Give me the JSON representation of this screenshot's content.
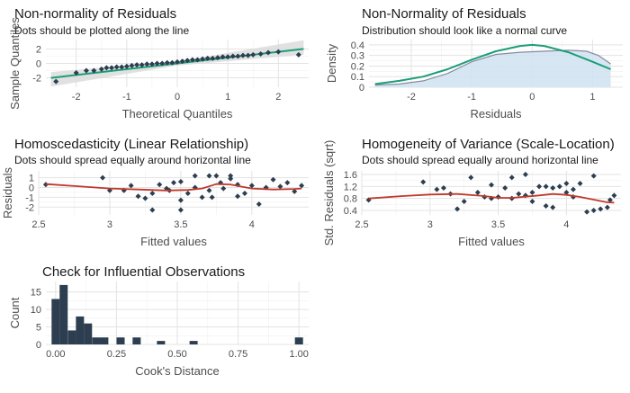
{
  "colors": {
    "panel_bg": "#ebebeb",
    "grid": "#ffffff",
    "points": "#2c3e50",
    "accent_green": "#1b9e77",
    "smooth_red": "#c0392b",
    "density_fill": "#cfe3f1",
    "density_line": "#8a8aa0",
    "band": "#d9d9d9"
  },
  "chart_data": [
    {
      "id": "qq",
      "type": "scatter",
      "title": "Non-normality of Residuals",
      "subtitle": "Dots should be plotted along the line",
      "xlabel": "Theoretical Quantiles",
      "ylabel": "Sample Quantiles",
      "xlim": [
        -2.6,
        2.6
      ],
      "ylim": [
        -3.3,
        3.3
      ],
      "xticks": [
        -2,
        -1,
        0,
        1,
        2
      ],
      "yticks": [
        -2,
        0,
        2
      ],
      "points": [
        [
          -2.4,
          -2.5
        ],
        [
          -2.0,
          -1.3
        ],
        [
          -1.8,
          -1.0
        ],
        [
          -1.65,
          -1.0
        ],
        [
          -1.5,
          -0.8
        ],
        [
          -1.4,
          -0.6
        ],
        [
          -1.3,
          -0.6
        ],
        [
          -1.2,
          -0.5
        ],
        [
          -1.1,
          -0.5
        ],
        [
          -1.0,
          -0.4
        ],
        [
          -0.9,
          -0.3
        ],
        [
          -0.8,
          -0.2
        ],
        [
          -0.7,
          -0.2
        ],
        [
          -0.6,
          -0.1
        ],
        [
          -0.5,
          -0.1
        ],
        [
          -0.4,
          0.0
        ],
        [
          -0.3,
          0.0
        ],
        [
          -0.2,
          0.1
        ],
        [
          -0.1,
          0.1
        ],
        [
          0.0,
          0.2
        ],
        [
          0.1,
          0.3
        ],
        [
          0.2,
          0.4
        ],
        [
          0.3,
          0.5
        ],
        [
          0.4,
          0.5
        ],
        [
          0.5,
          0.6
        ],
        [
          0.6,
          0.7
        ],
        [
          0.7,
          0.7
        ],
        [
          0.8,
          0.8
        ],
        [
          0.9,
          0.9
        ],
        [
          1.0,
          0.9
        ],
        [
          1.1,
          1.0
        ],
        [
          1.2,
          1.0
        ],
        [
          1.3,
          1.1
        ],
        [
          1.4,
          1.1
        ],
        [
          1.5,
          1.2
        ],
        [
          1.65,
          1.3
        ],
        [
          1.8,
          1.5
        ],
        [
          2.0,
          1.6
        ],
        [
          2.4,
          1.2
        ]
      ],
      "line": [
        [
          -2.5,
          -2.0
        ],
        [
          2.5,
          2.0
        ]
      ],
      "band_upper": [
        [
          -2.5,
          -1.2
        ],
        [
          0,
          0.3
        ],
        [
          2.5,
          3.2
        ]
      ],
      "band_lower": [
        [
          -2.5,
          -3.2
        ],
        [
          0,
          -0.3
        ],
        [
          2.5,
          1.2
        ]
      ]
    },
    {
      "id": "density",
      "type": "area",
      "title": "Non-Normality of Residuals",
      "subtitle": "Distribution should look like a normal curve",
      "xlabel": "Residuals",
      "ylabel": "Density",
      "xlim": [
        -2.7,
        1.5
      ],
      "ylim": [
        0,
        0.45
      ],
      "xticks": [
        -2,
        -1,
        0,
        1
      ],
      "yticks": [
        0.0,
        0.1,
        0.2,
        0.3,
        0.4
      ],
      "observed": [
        [
          -2.6,
          0.02
        ],
        [
          -2.2,
          0.03
        ],
        [
          -1.8,
          0.06
        ],
        [
          -1.4,
          0.13
        ],
        [
          -1.0,
          0.24
        ],
        [
          -0.6,
          0.31
        ],
        [
          -0.2,
          0.33
        ],
        [
          0.2,
          0.34
        ],
        [
          0.6,
          0.35
        ],
        [
          0.9,
          0.34
        ],
        [
          1.1,
          0.3
        ],
        [
          1.3,
          0.22
        ]
      ],
      "normal": [
        [
          -2.6,
          0.03
        ],
        [
          -2.2,
          0.06
        ],
        [
          -1.8,
          0.1
        ],
        [
          -1.4,
          0.17
        ],
        [
          -1.0,
          0.26
        ],
        [
          -0.6,
          0.34
        ],
        [
          -0.2,
          0.39
        ],
        [
          0.0,
          0.4
        ],
        [
          0.2,
          0.39
        ],
        [
          0.6,
          0.33
        ],
        [
          1.0,
          0.24
        ],
        [
          1.3,
          0.17
        ]
      ]
    },
    {
      "id": "linearity",
      "type": "scatter",
      "title": "Homoscedasticity (Linear Relationship)",
      "subtitle": "Dots should spread equally around horizontal line",
      "xlabel": "Fitted values",
      "ylabel": "Residuals",
      "xlim": [
        2.5,
        4.4
      ],
      "ylim": [
        -2.8,
        1.7
      ],
      "xticks": [
        2.5,
        3.0,
        3.5,
        4.0
      ],
      "yticks": [
        -2,
        -1,
        0,
        1
      ],
      "points": [
        [
          2.55,
          0.3
        ],
        [
          2.95,
          1.0
        ],
        [
          3.0,
          -0.3
        ],
        [
          3.1,
          -0.3
        ],
        [
          3.2,
          -0.9
        ],
        [
          3.25,
          -1.1
        ],
        [
          3.3,
          -0.6
        ],
        [
          3.3,
          -2.3
        ],
        [
          3.4,
          -0.1
        ],
        [
          3.45,
          0.5
        ],
        [
          3.5,
          0.6
        ],
        [
          3.5,
          -1.3
        ],
        [
          3.5,
          -2.3
        ],
        [
          3.55,
          -0.6
        ],
        [
          3.6,
          1.2
        ],
        [
          3.6,
          0.0
        ],
        [
          3.65,
          -1.0
        ],
        [
          3.7,
          1.2
        ],
        [
          3.7,
          -0.3
        ],
        [
          3.72,
          -1.0
        ],
        [
          3.75,
          1.2
        ],
        [
          3.78,
          0.5
        ],
        [
          3.8,
          -0.1
        ],
        [
          3.85,
          1.2
        ],
        [
          3.85,
          0.9
        ],
        [
          3.9,
          0.3
        ],
        [
          3.95,
          -0.6
        ],
        [
          4.0,
          0.2
        ],
        [
          4.05,
          -1.7
        ],
        [
          4.1,
          0.0
        ],
        [
          4.15,
          0.8
        ],
        [
          4.2,
          0.1
        ],
        [
          4.25,
          0.5
        ],
        [
          4.3,
          -0.4
        ],
        [
          4.35,
          0.2
        ],
        [
          3.15,
          0.2
        ],
        [
          3.35,
          0.3
        ],
        [
          3.42,
          -0.3
        ],
        [
          3.9,
          -0.9
        ]
      ],
      "smooth": [
        [
          2.55,
          0.35
        ],
        [
          2.8,
          0.1
        ],
        [
          3.0,
          -0.1
        ],
        [
          3.2,
          -0.2
        ],
        [
          3.4,
          -0.3
        ],
        [
          3.55,
          -0.25
        ],
        [
          3.65,
          -0.1
        ],
        [
          3.75,
          0.35
        ],
        [
          3.85,
          0.3
        ],
        [
          4.0,
          -0.1
        ],
        [
          4.15,
          -0.2
        ],
        [
          4.3,
          -0.15
        ],
        [
          4.35,
          -0.1
        ]
      ]
    },
    {
      "id": "scale-location",
      "type": "scatter",
      "title": "Homogeneity of Variance (Scale-Location)",
      "subtitle": "Dots should spread equally around horizontal line",
      "xlabel": "Fitted values",
      "ylabel": "Std. Residuals (sqrt)",
      "xlim": [
        2.5,
        4.4
      ],
      "ylim": [
        0.25,
        1.72
      ],
      "xticks": [
        2.5,
        3.0,
        3.5,
        4.0
      ],
      "yticks": [
        0.4,
        0.8,
        1.2,
        1.6
      ],
      "points": [
        [
          2.55,
          0.75
        ],
        [
          2.95,
          1.35
        ],
        [
          3.05,
          1.1
        ],
        [
          3.1,
          1.15
        ],
        [
          3.15,
          0.95
        ],
        [
          3.2,
          0.45
        ],
        [
          3.3,
          1.5
        ],
        [
          3.35,
          1.0
        ],
        [
          3.4,
          0.85
        ],
        [
          3.45,
          0.8
        ],
        [
          3.5,
          0.85
        ],
        [
          3.55,
          1.15
        ],
        [
          3.6,
          1.5
        ],
        [
          3.6,
          0.8
        ],
        [
          3.65,
          0.95
        ],
        [
          3.7,
          1.6
        ],
        [
          3.7,
          0.9
        ],
        [
          3.75,
          1.0
        ],
        [
          3.8,
          1.2
        ],
        [
          3.85,
          1.2
        ],
        [
          3.9,
          1.15
        ],
        [
          3.95,
          1.2
        ],
        [
          4.0,
          1.0
        ],
        [
          4.05,
          0.85
        ],
        [
          4.1,
          1.3
        ],
        [
          4.15,
          0.35
        ],
        [
          4.2,
          0.4
        ],
        [
          4.25,
          0.45
        ],
        [
          4.3,
          0.5
        ],
        [
          4.35,
          0.9
        ],
        [
          3.85,
          0.55
        ],
        [
          3.9,
          0.5
        ],
        [
          4.05,
          1.1
        ],
        [
          4.2,
          1.55
        ],
        [
          3.25,
          0.7
        ],
        [
          3.45,
          1.25
        ],
        [
          3.75,
          0.7
        ],
        [
          4.0,
          1.3
        ],
        [
          4.32,
          0.75
        ]
      ],
      "smooth": [
        [
          2.55,
          0.8
        ],
        [
          2.8,
          0.88
        ],
        [
          3.0,
          0.93
        ],
        [
          3.2,
          0.95
        ],
        [
          3.4,
          0.88
        ],
        [
          3.5,
          0.82
        ],
        [
          3.6,
          0.82
        ],
        [
          3.7,
          0.86
        ],
        [
          3.8,
          0.9
        ],
        [
          3.9,
          0.95
        ],
        [
          4.0,
          0.92
        ],
        [
          4.1,
          0.85
        ],
        [
          4.2,
          0.76
        ],
        [
          4.3,
          0.67
        ],
        [
          4.35,
          0.66
        ]
      ]
    },
    {
      "id": "cooks",
      "type": "bar",
      "title": "Check for Influential Observations",
      "xlabel": "Cook's Distance",
      "ylabel": "Count",
      "xlim": [
        -0.04,
        1.04
      ],
      "ylim": [
        0,
        18
      ],
      "xticks": [
        0.0,
        0.25,
        0.5,
        0.75,
        1.0
      ],
      "xticklabels": [
        "0.00",
        "0.25",
        "0.50",
        "0.75",
        "1.00"
      ],
      "yticks": [
        0,
        5,
        10,
        15
      ],
      "binwidth": 0.0333,
      "bins": [
        [
          0.0,
          13
        ],
        [
          0.033,
          17
        ],
        [
          0.067,
          4
        ],
        [
          0.1,
          8
        ],
        [
          0.133,
          6
        ],
        [
          0.167,
          2
        ],
        [
          0.2,
          2
        ],
        [
          0.267,
          2
        ],
        [
          0.333,
          2
        ],
        [
          0.433,
          1
        ],
        [
          0.567,
          1
        ],
        [
          1.0,
          2
        ]
      ]
    }
  ]
}
